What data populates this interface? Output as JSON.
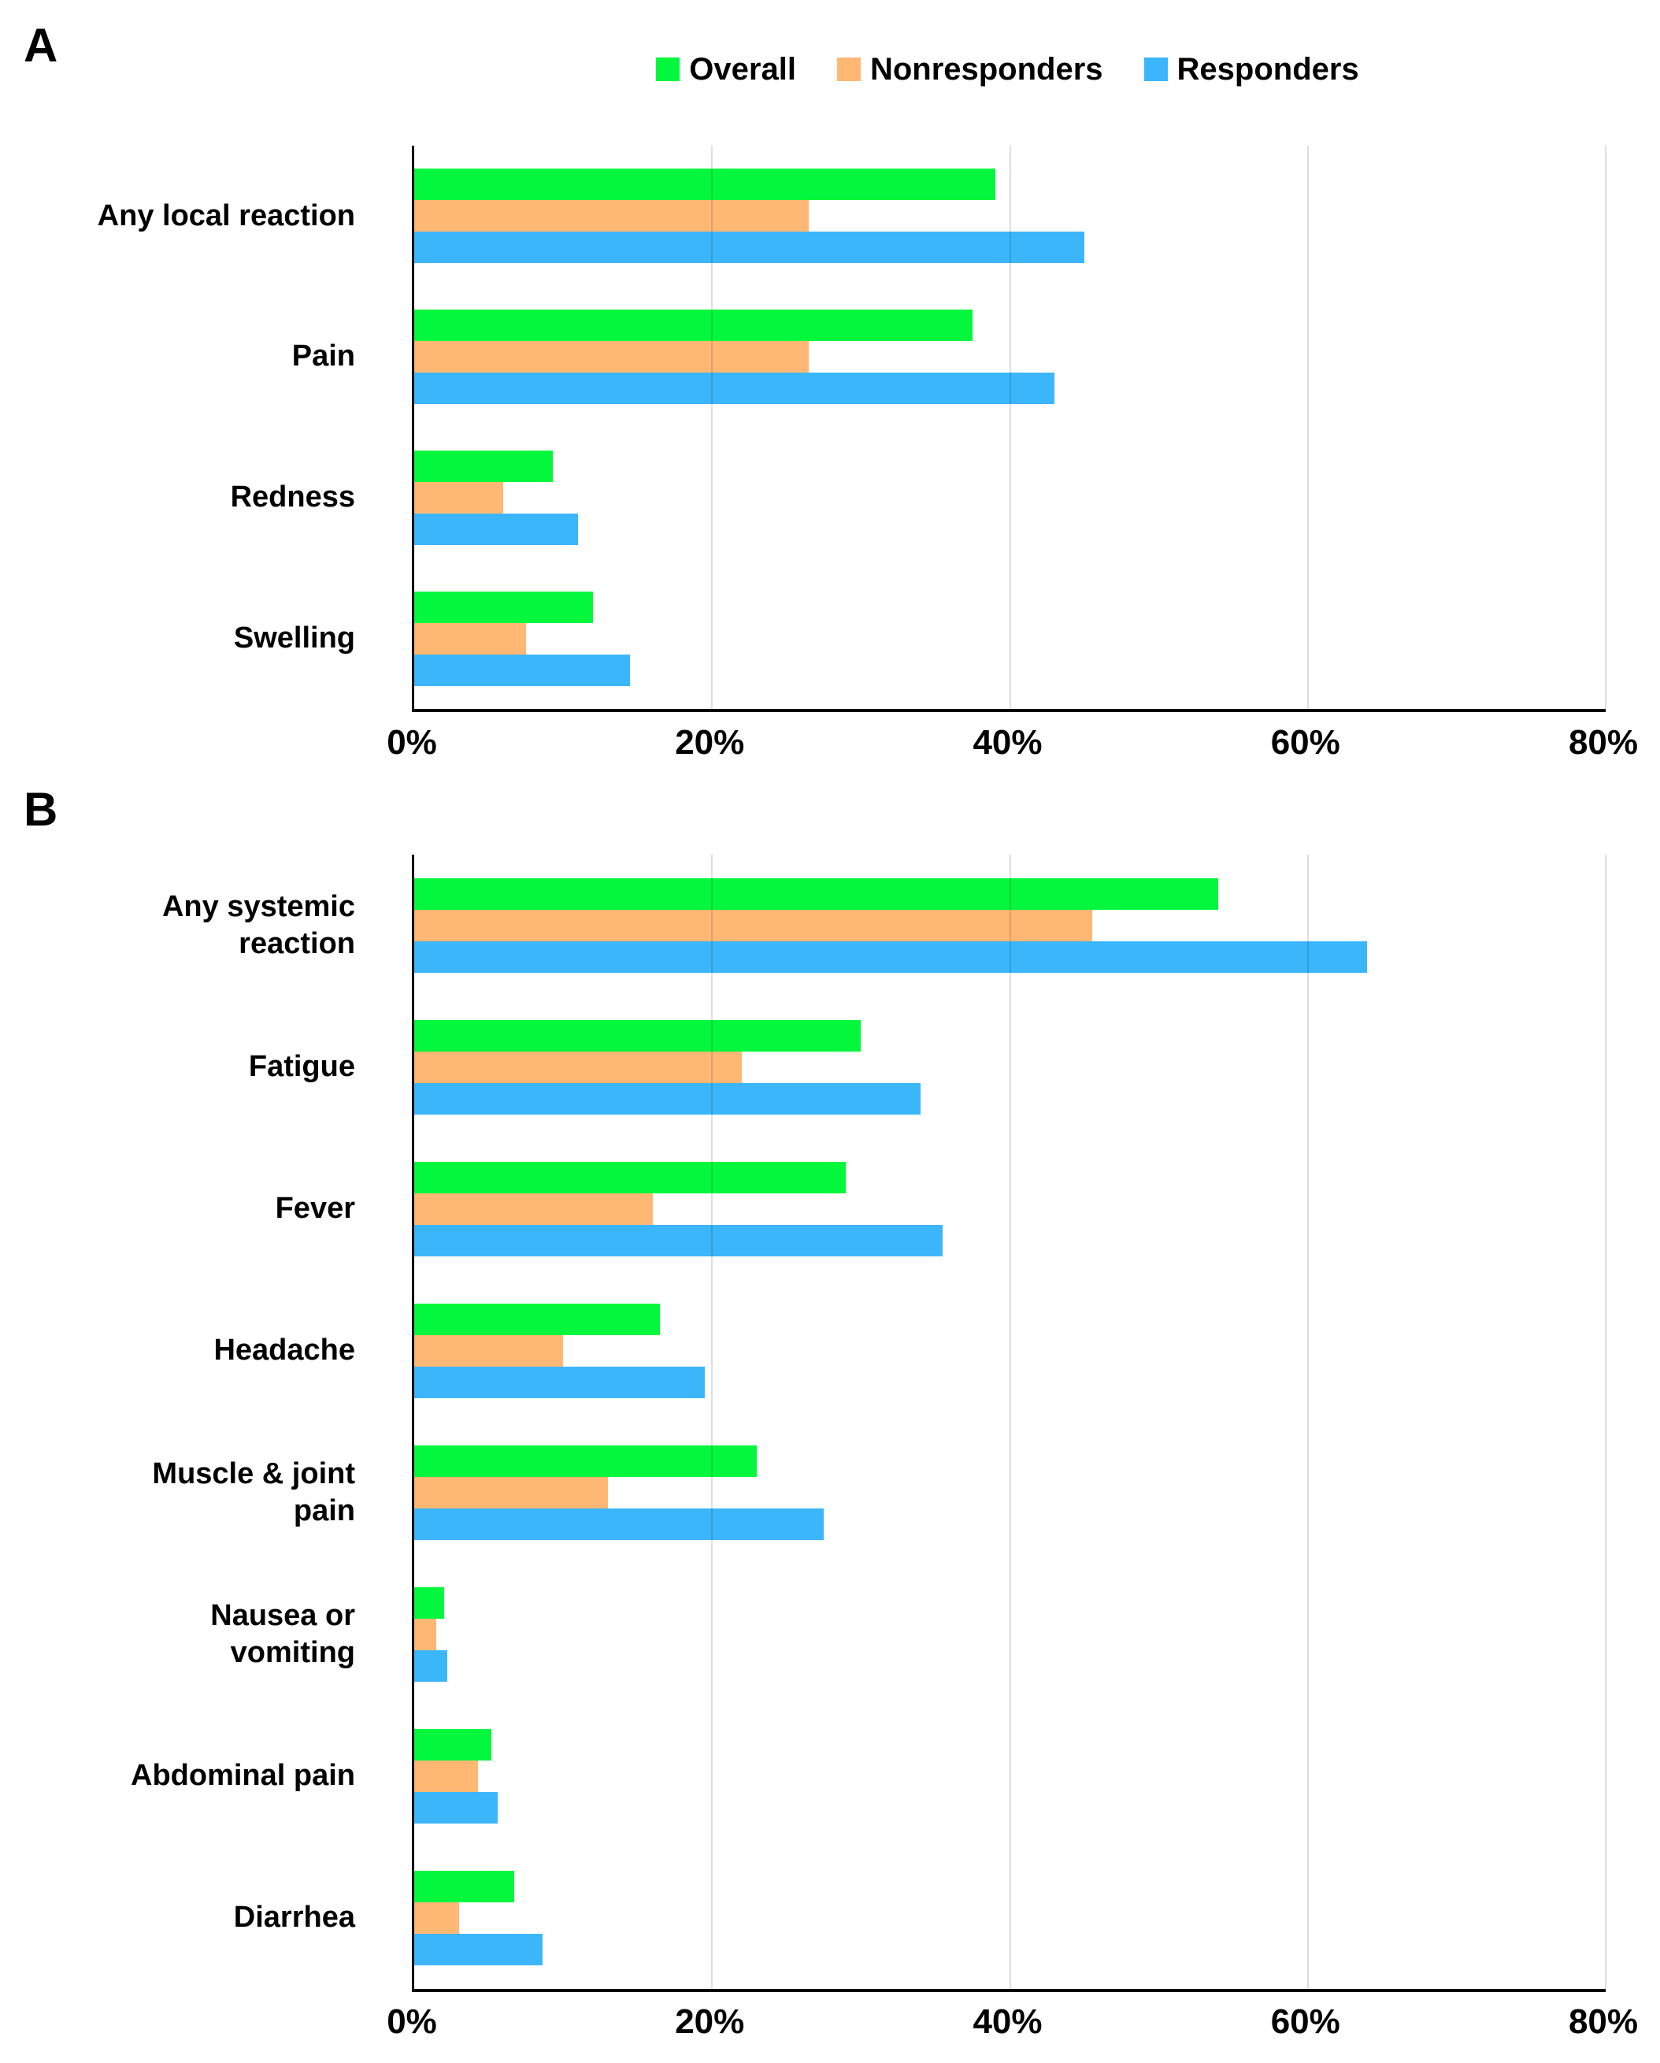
{
  "figure": {
    "background": "#ffffff",
    "panels": [
      {
        "letter": "A"
      },
      {
        "letter": "B"
      }
    ],
    "legend": {
      "items": [
        {
          "label": "Overall",
          "color": "#02F73D"
        },
        {
          "label": "Nonresponders",
          "color": "#FFB873"
        },
        {
          "label": "Responders",
          "color": "#3CB6FB"
        }
      ]
    },
    "colors": {
      "grid": "#D9D9D9",
      "axis": "#000000"
    }
  },
  "chart_data": [
    {
      "type": "bar",
      "orientation": "horizontal",
      "panel": "A",
      "title": "",
      "xlabel": "",
      "ylabel": "",
      "xlim": [
        0,
        80
      ],
      "xticks": [
        {
          "value": 0,
          "label": "0%"
        },
        {
          "value": 20,
          "label": "20%"
        },
        {
          "value": 40,
          "label": "40%"
        },
        {
          "value": 60,
          "label": "60%"
        },
        {
          "value": 80,
          "label": "80%"
        }
      ],
      "grid": true,
      "legend_position": "top",
      "categories": [
        "Any local reaction",
        "Pain",
        "Redness",
        "Swelling"
      ],
      "series": [
        {
          "name": "Overall",
          "color": "#02F73D",
          "values": [
            39,
            37.5,
            9.3,
            12
          ]
        },
        {
          "name": "Nonresponders",
          "color": "#FFB873",
          "values": [
            26.5,
            26.5,
            6,
            7.5
          ]
        },
        {
          "name": "Responders",
          "color": "#3CB6FB",
          "values": [
            45,
            43,
            11,
            14.5
          ]
        }
      ]
    },
    {
      "type": "bar",
      "orientation": "horizontal",
      "panel": "B",
      "title": "",
      "xlabel": "",
      "ylabel": "",
      "xlim": [
        0,
        80
      ],
      "xticks": [
        {
          "value": 0,
          "label": "0%"
        },
        {
          "value": 20,
          "label": "20%"
        },
        {
          "value": 40,
          "label": "40%"
        },
        {
          "value": 60,
          "label": "60%"
        },
        {
          "value": 80,
          "label": "80%"
        }
      ],
      "grid": true,
      "legend_position": "none",
      "categories": [
        "Any systemic\nreaction",
        "Fatigue",
        "Fever",
        "Headache",
        "Muscle & joint\npain",
        "Nausea or\nvomiting",
        "Abdominal pain",
        "Diarrhea"
      ],
      "series": [
        {
          "name": "Overall",
          "color": "#02F73D",
          "values": [
            54,
            30,
            29,
            16.5,
            23,
            2,
            5.2,
            6.7
          ]
        },
        {
          "name": "Nonresponders",
          "color": "#FFB873",
          "values": [
            45.5,
            22,
            16,
            10,
            13,
            1.5,
            4.3,
            3
          ]
        },
        {
          "name": "Responders",
          "color": "#3CB6FB",
          "values": [
            64,
            34,
            35.5,
            19.5,
            27.5,
            2.2,
            5.6,
            8.6
          ]
        }
      ]
    }
  ]
}
